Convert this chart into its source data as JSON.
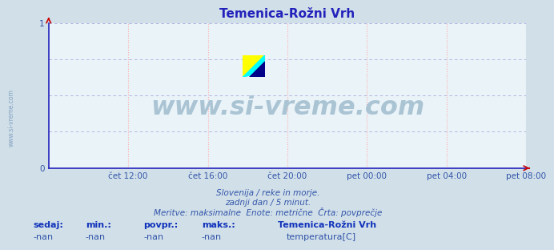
{
  "title": "Temenica-Rožni Vrh",
  "bg_color": "#d0dfe8",
  "plot_bg_color": "#eaf3f8",
  "grid_color_v": "#ffaaaa",
  "grid_color_h": "#aaaadd",
  "axis_color": "#2222bb",
  "title_color": "#2222bb",
  "ylim": [
    0,
    1
  ],
  "yticks": [
    0,
    1
  ],
  "xtick_labels": [
    "čet 12:00",
    "čet 16:00",
    "čet 20:00",
    "pet 00:00",
    "pet 04:00",
    "pet 08:00"
  ],
  "xtick_count": 6,
  "watermark_text": "www.si-vreme.com",
  "watermark_color": "#aac4d4",
  "side_text": "www.si-vreme.com",
  "subtitle_lines": [
    "Slovenija / reke in morje.",
    "zadnji dan / 5 minut.",
    "Meritve: maksimalne  Enote: metrične  Črta: povprečje"
  ],
  "footer_labels": [
    "sedaj:",
    "min.:",
    "povpr.:",
    "maks.:"
  ],
  "footer_values": [
    "-nan",
    "-nan",
    "-nan",
    "-nan"
  ],
  "legend_title": "Temenica-Rožni Vrh",
  "legend_color": "#cc0000",
  "legend_label": "temperatura[C]",
  "text_color": "#3355aa",
  "footer_label_color": "#1133bb",
  "title_fontsize": 11,
  "tick_fontsize": 7.5,
  "subtitle_fontsize": 7.5,
  "footer_fontsize": 8
}
